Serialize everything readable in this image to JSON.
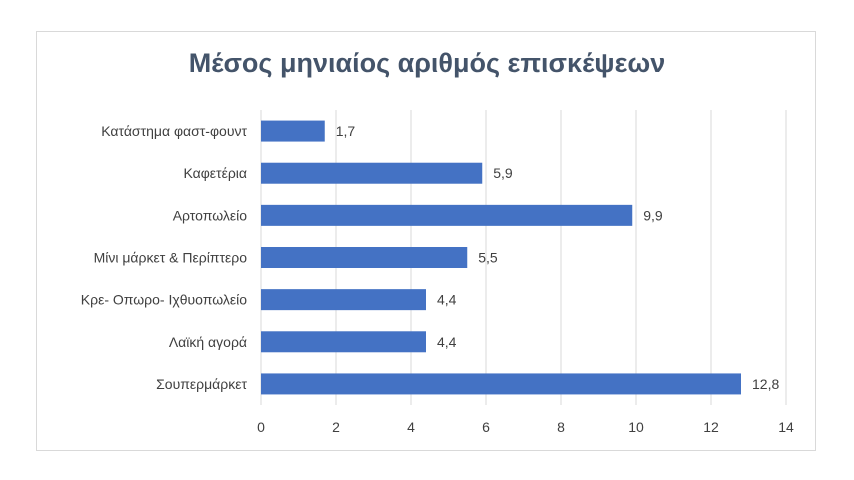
{
  "chart_data": {
    "type": "bar",
    "orientation": "horizontal",
    "title": "Μέσος μηνιαίος αριθμός επισκέψεων",
    "categories": [
      "Κατάστημα φαστ-φουντ",
      "Καφετέρια",
      "Αρτοπωλείο",
      "Μίνι μάρκετ & Περίπτερο",
      "Κρε- Οπωρο- Ιχθυοπωλείο",
      "Λαϊκή αγορά",
      "Σουπερμάρκετ"
    ],
    "values": [
      1.7,
      5.9,
      9.9,
      5.5,
      4.4,
      4.4,
      12.8
    ],
    "value_labels": [
      "1,7",
      "5,9",
      "9,9",
      "5,5",
      "4,4",
      "4,4",
      "12,8"
    ],
    "xlim": [
      0,
      14
    ],
    "xticks": [
      0,
      2,
      4,
      6,
      8,
      10,
      12,
      14
    ],
    "xlabel": "",
    "ylabel": "",
    "grid": "vertical",
    "bar_color": "#4472c4",
    "grid_color": "#d9d9d9",
    "legend": "none"
  }
}
